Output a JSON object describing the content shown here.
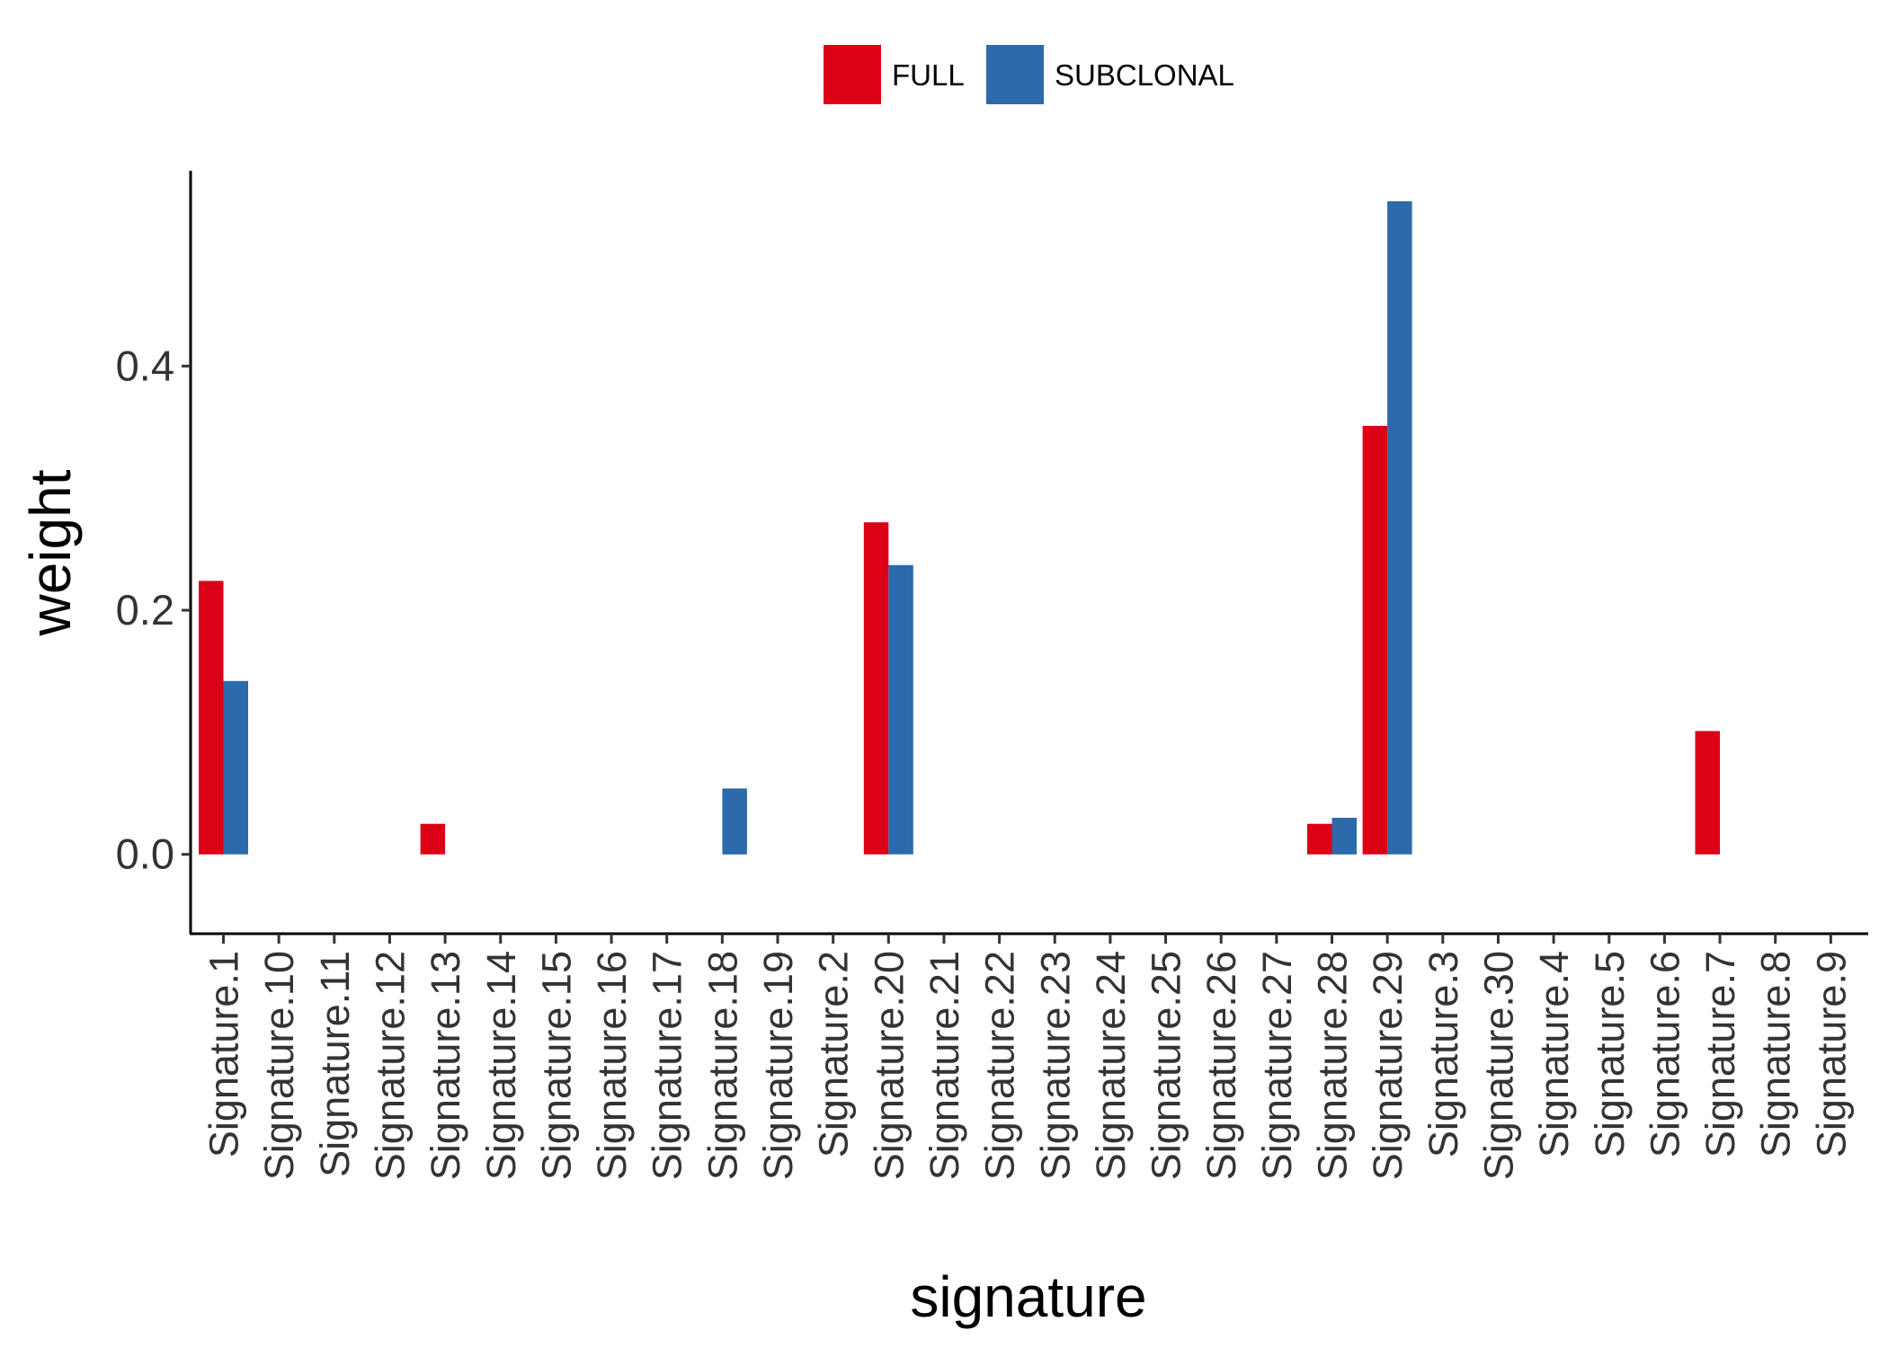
{
  "chart_data": {
    "type": "bar",
    "xlabel": "signature",
    "ylabel": "weight",
    "ylim": [
      -0.065,
      0.56
    ],
    "yticks": [
      "0.0",
      "0.2",
      "0.4"
    ],
    "ytick_values": [
      0.0,
      0.2,
      0.4
    ],
    "legend_position": "top",
    "grid": false,
    "categories": [
      "Signature.1",
      "Signature.10",
      "Signature.11",
      "Signature.12",
      "Signature.13",
      "Signature.14",
      "Signature.15",
      "Signature.16",
      "Signature.17",
      "Signature.18",
      "Signature.19",
      "Signature.2",
      "Signature.20",
      "Signature.21",
      "Signature.22",
      "Signature.23",
      "Signature.24",
      "Signature.25",
      "Signature.26",
      "Signature.27",
      "Signature.28",
      "Signature.29",
      "Signature.3",
      "Signature.30",
      "Signature.4",
      "Signature.5",
      "Signature.6",
      "Signature.7",
      "Signature.8",
      "Signature.9"
    ],
    "series": [
      {
        "name": "FULL",
        "color": "#DC0017",
        "values": [
          0.224,
          0,
          0,
          0,
          0.025,
          0,
          0,
          0,
          0,
          0,
          0,
          0,
          0.272,
          0,
          0,
          0,
          0,
          0,
          0,
          0,
          0.025,
          0.351,
          0,
          0,
          0,
          0,
          0,
          0.101,
          0,
          0
        ]
      },
      {
        "name": "SUBCLONAL",
        "color": "#2C6AAB",
        "values": [
          0.142,
          0,
          0,
          0,
          0,
          0,
          0,
          0,
          0,
          0.054,
          0,
          0,
          0.237,
          0,
          0,
          0,
          0,
          0,
          0,
          0,
          0.03,
          0.535,
          0,
          0,
          0,
          0,
          0,
          0,
          0,
          0
        ]
      }
    ]
  }
}
